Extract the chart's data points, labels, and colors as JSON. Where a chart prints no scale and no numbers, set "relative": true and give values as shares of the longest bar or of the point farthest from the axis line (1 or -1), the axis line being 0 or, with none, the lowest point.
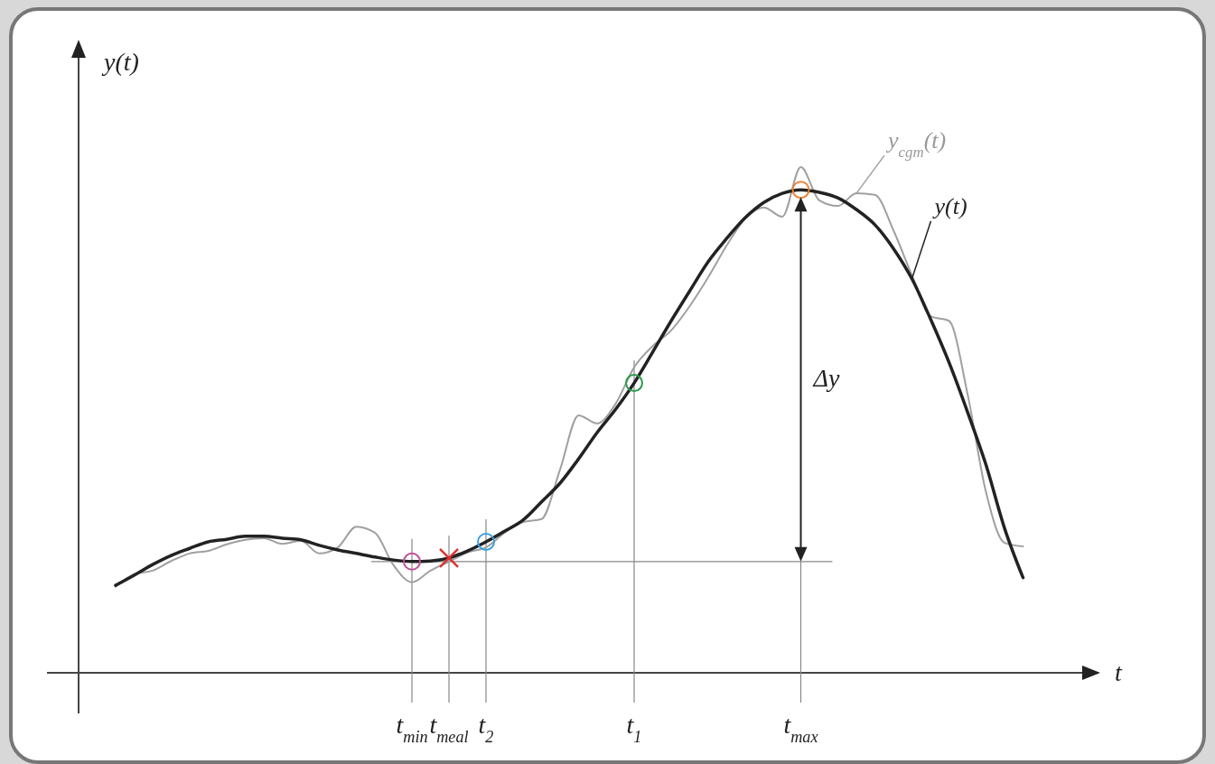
{
  "chart_data": {
    "type": "line",
    "relative": true,
    "xlabel": "t",
    "ylabel": "y(t)",
    "legend": false,
    "categories": [
      null,
      null,
      null,
      null,
      null,
      null,
      null,
      null,
      null,
      null,
      null,
      null,
      null,
      null,
      null,
      null,
      "t$_{min}$",
      null,
      "t$_{meal}$",
      null,
      "t$_{2}$",
      null,
      null,
      null,
      null,
      null,
      null,
      null,
      "t$_{1}$",
      null,
      null,
      null,
      null,
      null,
      null,
      null,
      null,
      "t$_{max}$",
      null,
      null,
      null,
      null,
      null,
      null,
      null,
      null,
      null,
      null,
      null,
      null
    ],
    "series": [
      {
        "name": "y$_{cgm}$(t)",
        "color": "#a0a0a0",
        "values": [
          0.17,
          0.195,
          0.202,
          0.221,
          0.236,
          0.241,
          0.254,
          0.263,
          0.266,
          0.255,
          0.261,
          0.236,
          0.248,
          0.289,
          0.277,
          0.213,
          0.179,
          0.202,
          0.22,
          0.238,
          0.248,
          0.277,
          0.298,
          0.304,
          0.402,
          0.509,
          0.493,
          0.532,
          0.604,
          0.646,
          0.677,
          0.725,
          0.782,
          0.845,
          0.898,
          0.92,
          0.902,
          1.0,
          0.934,
          0.923,
          0.948,
          0.945,
          0.875,
          0.786,
          0.705,
          0.696,
          0.552,
          0.357,
          0.257,
          0.25
        ]
      },
      {
        "name": "y(t)",
        "color": "#222222",
        "values": [
          0.173,
          0.193,
          0.214,
          0.232,
          0.246,
          0.259,
          0.264,
          0.27,
          0.27,
          0.266,
          0.263,
          0.252,
          0.243,
          0.236,
          0.229,
          0.223,
          0.22,
          0.221,
          0.227,
          0.241,
          0.259,
          0.28,
          0.302,
          0.338,
          0.375,
          0.423,
          0.475,
          0.521,
          0.573,
          0.634,
          0.696,
          0.755,
          0.813,
          0.859,
          0.9,
          0.93,
          0.948,
          0.955,
          0.95,
          0.939,
          0.916,
          0.886,
          0.839,
          0.779,
          0.7,
          0.614,
          0.516,
          0.411,
          0.286,
          0.188
        ]
      },
      {
        "type": "scatter",
        "marker": "circle",
        "color": "#c0509a",
        "x": [
          "t$_{min}$"
        ],
        "values": [
          0.22
        ]
      },
      {
        "type": "scatter",
        "marker": "cross",
        "color": "#e03030",
        "x": [
          "t$_{meal}$"
        ],
        "values": [
          0.227
        ]
      },
      {
        "type": "scatter",
        "marker": "circle",
        "color": "#3aa0e0",
        "x": [
          "t$_{2}$"
        ],
        "values": [
          0.259
        ]
      },
      {
        "type": "scatter",
        "marker": "circle",
        "color": "#2a9a4a",
        "x": [
          "t$_{1}$"
        ],
        "values": [
          0.573
        ]
      },
      {
        "type": "scatter",
        "marker": "circle",
        "color": "#f08030",
        "x": [
          "t$_{max}$"
        ],
        "values": [
          0.955
        ]
      }
    ],
    "ref_lines": [
      {
        "axis": "y",
        "value": 0.22,
        "color": "#888888"
      },
      {
        "axis": "x",
        "value": "t$_{min}$",
        "color": "#888888"
      },
      {
        "axis": "x",
        "value": "t$_{meal}$",
        "color": "#888888"
      },
      {
        "axis": "x",
        "value": "t$_{2}$",
        "color": "#888888"
      },
      {
        "axis": "x",
        "value": "t$_{1}$",
        "color": "#888888"
      },
      {
        "axis": "x",
        "value": "t$_{max}$",
        "color": "#888888"
      }
    ],
    "annotations": [
      "Δy"
    ]
  }
}
